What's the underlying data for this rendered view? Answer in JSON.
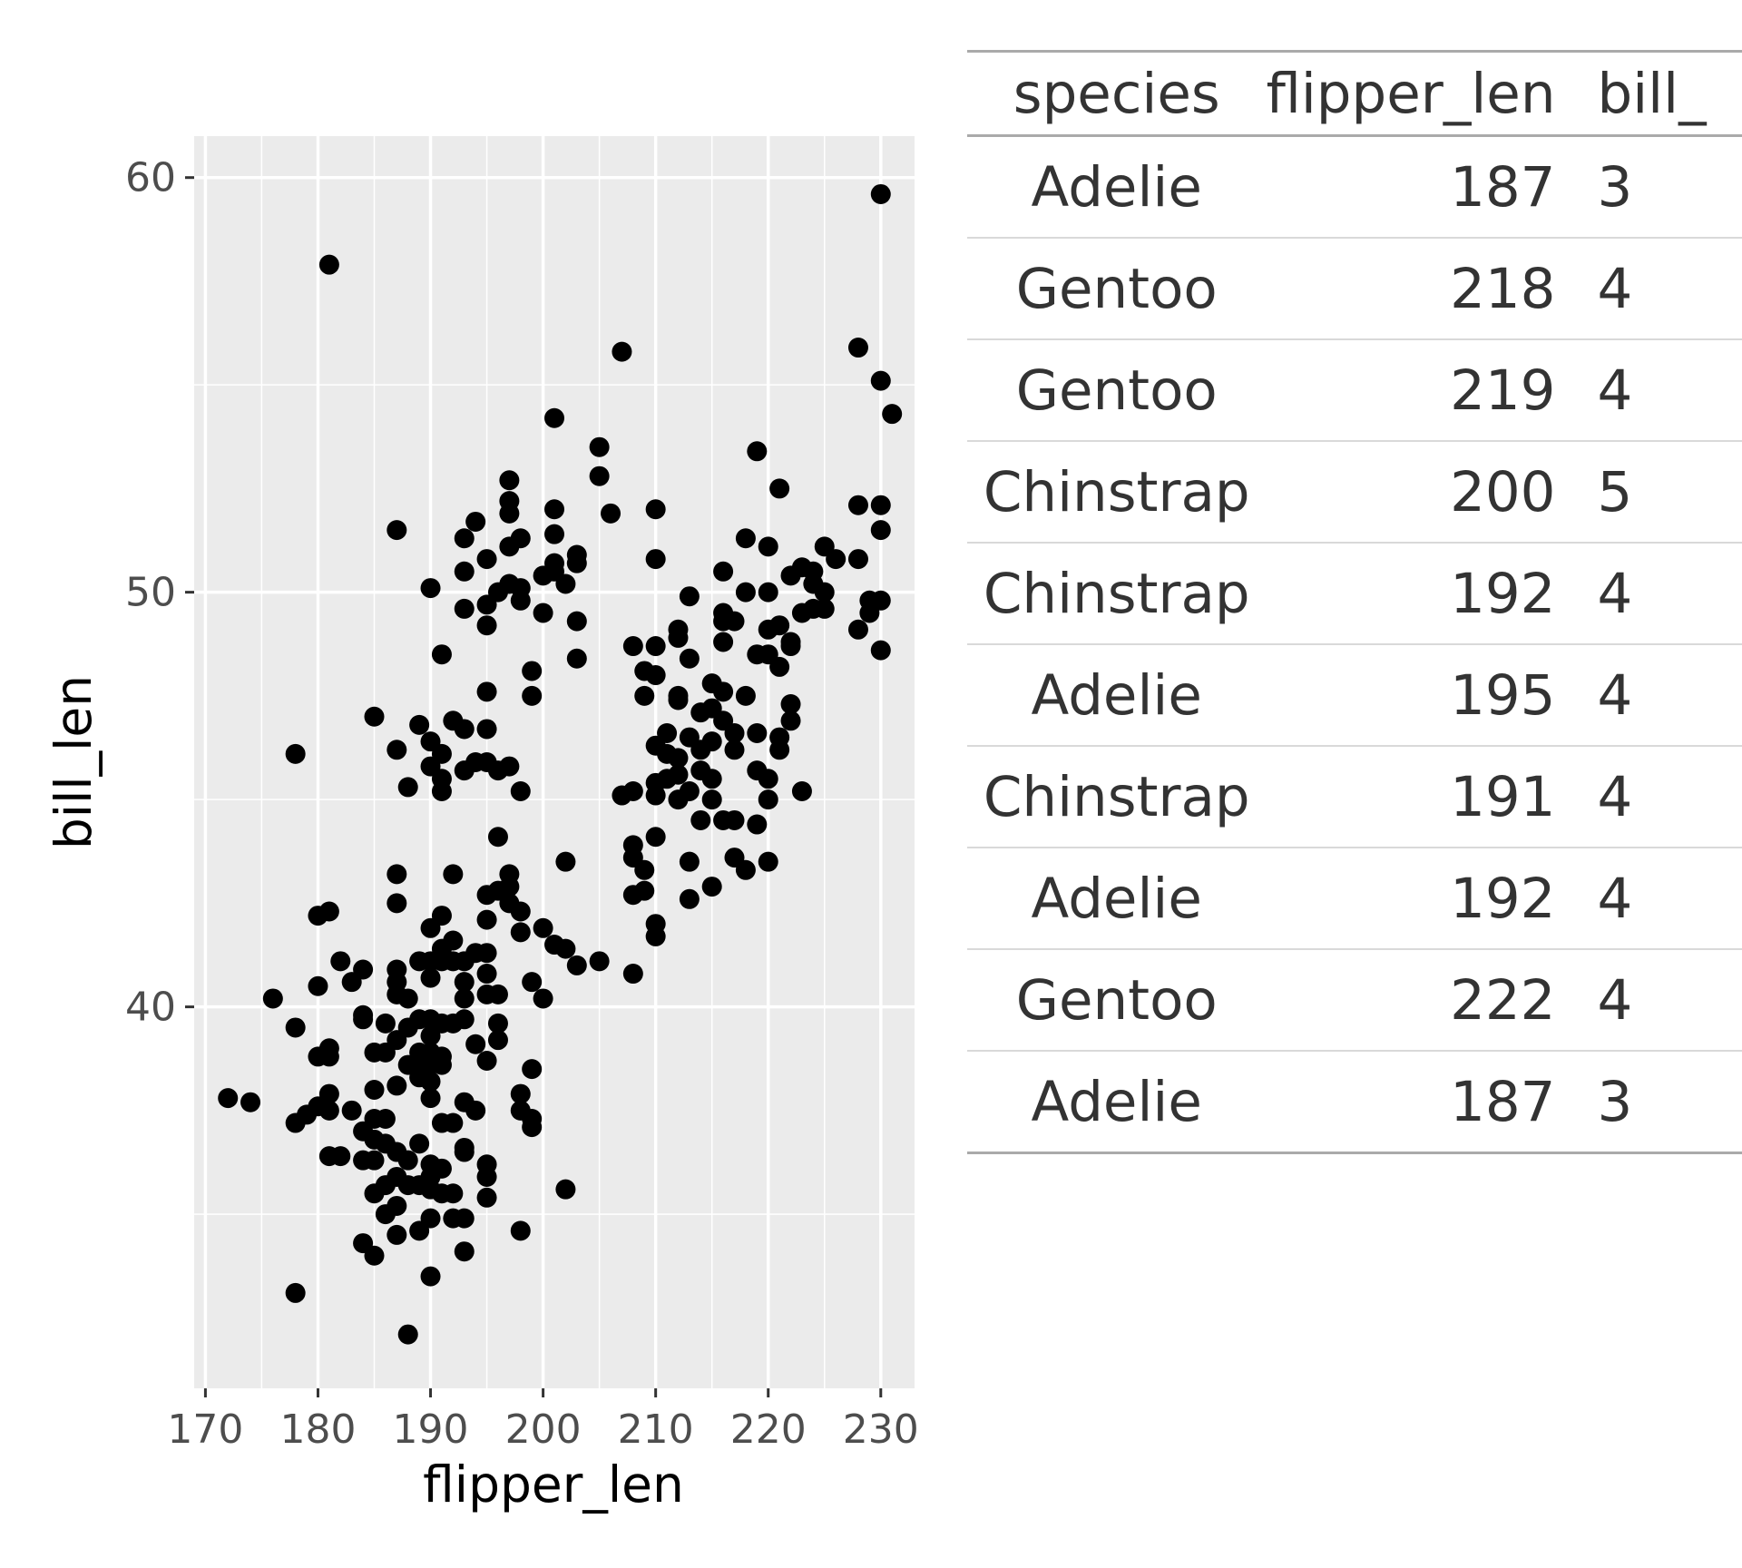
{
  "chart_data": {
    "type": "scatter",
    "xlabel": "flipper_len",
    "ylabel": "bill_len",
    "xlim": [
      169,
      233
    ],
    "ylim": [
      30.8,
      61
    ],
    "x_ticks": [
      170,
      180,
      190,
      200,
      210,
      220,
      230
    ],
    "y_ticks": [
      40,
      50,
      60
    ],
    "grid": true,
    "point_color": "#000000",
    "panel_color": "#ebebeb",
    "points": [
      [
        181,
        57.9
      ],
      [
        230,
        59.6
      ],
      [
        207,
        55.8
      ],
      [
        228,
        55.9
      ],
      [
        230,
        55.1
      ],
      [
        231,
        54.3
      ],
      [
        201,
        54.2
      ],
      [
        205,
        53.5
      ],
      [
        219,
        53.4
      ],
      [
        197,
        52.7
      ],
      [
        205,
        52.8
      ],
      [
        221,
        52.5
      ],
      [
        197,
        52.2
      ],
      [
        210,
        52.0
      ],
      [
        201,
        52.0
      ],
      [
        228,
        52.1
      ],
      [
        230,
        52.1
      ],
      [
        206,
        51.9
      ],
      [
        197,
        51.9
      ],
      [
        187,
        51.5
      ],
      [
        201,
        51.4
      ],
      [
        230,
        51.5
      ],
      [
        194,
        51.7
      ],
      [
        218,
        51.3
      ],
      [
        193,
        51.3
      ],
      [
        197,
        51.1
      ],
      [
        198,
        51.3
      ],
      [
        220,
        51.1
      ],
      [
        225,
        51.1
      ],
      [
        226,
        50.8
      ],
      [
        203,
        50.9
      ],
      [
        228,
        50.8
      ],
      [
        223,
        50.6
      ],
      [
        210,
        50.8
      ],
      [
        201,
        50.7
      ],
      [
        203,
        50.7
      ],
      [
        195,
        50.8
      ],
      [
        193,
        50.5
      ],
      [
        216,
        50.5
      ],
      [
        224,
        50.5
      ],
      [
        222,
        50.4
      ],
      [
        200,
        50.4
      ],
      [
        201,
        50.5
      ],
      [
        224,
        50.2
      ],
      [
        202,
        50.2
      ],
      [
        197,
        50.2
      ],
      [
        198,
        50.1
      ],
      [
        190,
        50.1
      ],
      [
        218,
        50.0
      ],
      [
        220,
        50.0
      ],
      [
        225,
        50.0
      ],
      [
        196,
        50.0
      ],
      [
        229,
        49.8
      ],
      [
        230,
        49.8
      ],
      [
        198,
        49.8
      ],
      [
        213,
        49.9
      ],
      [
        195,
        49.7
      ],
      [
        193,
        49.6
      ],
      [
        224,
        49.6
      ],
      [
        225,
        49.6
      ],
      [
        229,
        49.5
      ],
      [
        216,
        49.5
      ],
      [
        200,
        49.5
      ],
      [
        223,
        49.5
      ],
      [
        216,
        49.3
      ],
      [
        217,
        49.3
      ],
      [
        203,
        49.3
      ],
      [
        221,
        49.2
      ],
      [
        195,
        49.2
      ],
      [
        212,
        49.1
      ],
      [
        220,
        49.1
      ],
      [
        228,
        49.1
      ],
      [
        212,
        48.9
      ],
      [
        216,
        48.8
      ],
      [
        210,
        48.7
      ],
      [
        222,
        48.7
      ],
      [
        208,
        48.7
      ],
      [
        222,
        48.8
      ],
      [
        219,
        48.5
      ],
      [
        220,
        48.5
      ],
      [
        191,
        48.5
      ],
      [
        213,
        48.4
      ],
      [
        203,
        48.4
      ],
      [
        230,
        48.6
      ],
      [
        221,
        48.2
      ],
      [
        209,
        48.1
      ],
      [
        199,
        48.1
      ],
      [
        210,
        48.0
      ],
      [
        215,
        47.8
      ],
      [
        216,
        47.6
      ],
      [
        195,
        47.6
      ],
      [
        212,
        47.5
      ],
      [
        209,
        47.5
      ],
      [
        199,
        47.5
      ],
      [
        212,
        47.4
      ],
      [
        218,
        47.5
      ],
      [
        222,
        47.3
      ],
      [
        215,
        47.2
      ],
      [
        185,
        47.0
      ],
      [
        214,
        47.1
      ],
      [
        216,
        46.9
      ],
      [
        222,
        46.9
      ],
      [
        189,
        46.8
      ],
      [
        193,
        46.7
      ],
      [
        195,
        46.7
      ],
      [
        192,
        46.9
      ],
      [
        213,
        46.5
      ],
      [
        211,
        46.6
      ],
      [
        217,
        46.6
      ],
      [
        219,
        46.6
      ],
      [
        221,
        46.5
      ],
      [
        221,
        46.2
      ],
      [
        187,
        46.2
      ],
      [
        190,
        46.4
      ],
      [
        191,
        46.1
      ],
      [
        215,
        46.4
      ],
      [
        214,
        46.2
      ],
      [
        217,
        46.2
      ],
      [
        210,
        46.3
      ],
      [
        212,
        46.0
      ],
      [
        211,
        46.1
      ],
      [
        190,
        45.8
      ],
      [
        178,
        46.1
      ],
      [
        194,
        45.9
      ],
      [
        195,
        45.9
      ],
      [
        196,
        45.7
      ],
      [
        197,
        45.8
      ],
      [
        193,
        45.7
      ],
      [
        191,
        45.5
      ],
      [
        211,
        45.5
      ],
      [
        212,
        45.6
      ],
      [
        214,
        45.7
      ],
      [
        215,
        45.5
      ],
      [
        219,
        45.7
      ],
      [
        220,
        45.5
      ],
      [
        210,
        45.4
      ],
      [
        213,
        45.2
      ],
      [
        212,
        45.0
      ],
      [
        188,
        45.3
      ],
      [
        198,
        45.2
      ],
      [
        191,
        45.2
      ],
      [
        210,
        45.1
      ],
      [
        215,
        45.0
      ],
      [
        208,
        45.2
      ],
      [
        207,
        45.1
      ],
      [
        220,
        45.0
      ],
      [
        223,
        45.2
      ],
      [
        214,
        44.5
      ],
      [
        216,
        44.5
      ],
      [
        217,
        44.5
      ],
      [
        219,
        44.4
      ],
      [
        196,
        44.1
      ],
      [
        210,
        44.1
      ],
      [
        208,
        43.9
      ],
      [
        208,
        43.6
      ],
      [
        209,
        43.3
      ],
      [
        213,
        43.5
      ],
      [
        217,
        43.6
      ],
      [
        218,
        43.3
      ],
      [
        220,
        43.5
      ],
      [
        202,
        43.5
      ],
      [
        187,
        43.2
      ],
      [
        192,
        43.2
      ],
      [
        197,
        43.2
      ],
      [
        197,
        42.9
      ],
      [
        209,
        42.8
      ],
      [
        208,
        42.7
      ],
      [
        213,
        42.6
      ],
      [
        215,
        42.9
      ],
      [
        195,
        42.7
      ],
      [
        196,
        42.8
      ],
      [
        187,
        42.5
      ],
      [
        197,
        42.5
      ],
      [
        198,
        42.3
      ],
      [
        181,
        42.3
      ],
      [
        180,
        42.2
      ],
      [
        191,
        42.2
      ],
      [
        190,
        41.9
      ],
      [
        195,
        42.1
      ],
      [
        198,
        41.8
      ],
      [
        200,
        41.9
      ],
      [
        210,
        42.0
      ],
      [
        210,
        41.7
      ],
      [
        201,
        41.5
      ],
      [
        202,
        41.4
      ],
      [
        191,
        41.4
      ],
      [
        192,
        41.6
      ],
      [
        194,
        41.3
      ],
      [
        195,
        41.3
      ],
      [
        182,
        41.1
      ],
      [
        189,
        41.1
      ],
      [
        190,
        41.1
      ],
      [
        191,
        41.1
      ],
      [
        192,
        41.1
      ],
      [
        193,
        41.1
      ],
      [
        205,
        41.1
      ],
      [
        203,
        41.0
      ],
      [
        184,
        40.9
      ],
      [
        187,
        40.9
      ],
      [
        195,
        40.8
      ],
      [
        190,
        40.7
      ],
      [
        208,
        40.8
      ],
      [
        183,
        40.6
      ],
      [
        187,
        40.6
      ],
      [
        193,
        40.6
      ],
      [
        199,
        40.6
      ],
      [
        180,
        40.5
      ],
      [
        187,
        40.3
      ],
      [
        195,
        40.3
      ],
      [
        196,
        40.3
      ],
      [
        176,
        40.2
      ],
      [
        188,
        40.2
      ],
      [
        193,
        40.2
      ],
      [
        200,
        40.2
      ],
      [
        184,
        39.8
      ],
      [
        189,
        39.7
      ],
      [
        190,
        39.7
      ],
      [
        191,
        39.6
      ],
      [
        192,
        39.6
      ],
      [
        186,
        39.6
      ],
      [
        196,
        39.6
      ],
      [
        178,
        39.5
      ],
      [
        184,
        39.7
      ],
      [
        188,
        39.5
      ],
      [
        193,
        39.7
      ],
      [
        187,
        39.2
      ],
      [
        190,
        39.3
      ],
      [
        194,
        39.1
      ],
      [
        196,
        39.2
      ],
      [
        181,
        39.0
      ],
      [
        185,
        38.9
      ],
      [
        186,
        38.9
      ],
      [
        189,
        38.9
      ],
      [
        190,
        38.9
      ],
      [
        191,
        38.8
      ],
      [
        180,
        38.8
      ],
      [
        181,
        38.8
      ],
      [
        188,
        38.6
      ],
      [
        189,
        38.5
      ],
      [
        190,
        38.6
      ],
      [
        191,
        38.6
      ],
      [
        195,
        38.7
      ],
      [
        199,
        38.5
      ],
      [
        189,
        38.3
      ],
      [
        190,
        38.2
      ],
      [
        185,
        38.0
      ],
      [
        187,
        38.1
      ],
      [
        198,
        37.9
      ],
      [
        181,
        37.9
      ],
      [
        172,
        37.8
      ],
      [
        174,
        37.7
      ],
      [
        193,
        37.7
      ],
      [
        194,
        37.5
      ],
      [
        180,
        37.6
      ],
      [
        181,
        37.5
      ],
      [
        183,
        37.5
      ],
      [
        185,
        37.3
      ],
      [
        186,
        37.3
      ],
      [
        190,
        37.8
      ],
      [
        178,
        37.2
      ],
      [
        179,
        37.4
      ],
      [
        191,
        37.2
      ],
      [
        192,
        37.2
      ],
      [
        198,
        37.5
      ],
      [
        199,
        37.3
      ],
      [
        199,
        37.1
      ],
      [
        184,
        37.0
      ],
      [
        185,
        36.8
      ],
      [
        186,
        36.7
      ],
      [
        189,
        36.7
      ],
      [
        193,
        36.6
      ],
      [
        193,
        36.5
      ],
      [
        181,
        36.4
      ],
      [
        182,
        36.4
      ],
      [
        184,
        36.3
      ],
      [
        185,
        36.3
      ],
      [
        188,
        36.3
      ],
      [
        187,
        36.5
      ],
      [
        190,
        36.2
      ],
      [
        191,
        36.1
      ],
      [
        195,
        36.2
      ],
      [
        195,
        35.9
      ],
      [
        190,
        35.9
      ],
      [
        189,
        35.7
      ],
      [
        186,
        35.7
      ],
      [
        187,
        35.9
      ],
      [
        188,
        35.7
      ],
      [
        191,
        35.5
      ],
      [
        185,
        35.5
      ],
      [
        190,
        35.6
      ],
      [
        192,
        35.5
      ],
      [
        195,
        35.4
      ],
      [
        202,
        35.6
      ],
      [
        187,
        35.2
      ],
      [
        186,
        35.0
      ],
      [
        190,
        34.9
      ],
      [
        192,
        34.9
      ],
      [
        193,
        34.9
      ],
      [
        184,
        34.3
      ],
      [
        187,
        34.5
      ],
      [
        189,
        34.6
      ],
      [
        198,
        34.6
      ],
      [
        185,
        34.0
      ],
      [
        193,
        34.1
      ],
      [
        190,
        33.5
      ],
      [
        178,
        33.1
      ],
      [
        188,
        32.1
      ]
    ]
  },
  "table": {
    "headers": {
      "species": "species",
      "flipper_len": "flipper_len",
      "bill_len": "bill_"
    },
    "rows": [
      {
        "species": "Adelie",
        "flipper_len": "187",
        "bill_len": "3"
      },
      {
        "species": "Gentoo",
        "flipper_len": "218",
        "bill_len": "4"
      },
      {
        "species": "Gentoo",
        "flipper_len": "219",
        "bill_len": "4"
      },
      {
        "species": "Chinstrap",
        "flipper_len": "200",
        "bill_len": "5"
      },
      {
        "species": "Chinstrap",
        "flipper_len": "192",
        "bill_len": "4"
      },
      {
        "species": "Adelie",
        "flipper_len": "195",
        "bill_len": "4"
      },
      {
        "species": "Chinstrap",
        "flipper_len": "191",
        "bill_len": "4"
      },
      {
        "species": "Adelie",
        "flipper_len": "192",
        "bill_len": "4"
      },
      {
        "species": "Gentoo",
        "flipper_len": "222",
        "bill_len": "4"
      },
      {
        "species": "Adelie",
        "flipper_len": "187",
        "bill_len": "3"
      }
    ]
  }
}
